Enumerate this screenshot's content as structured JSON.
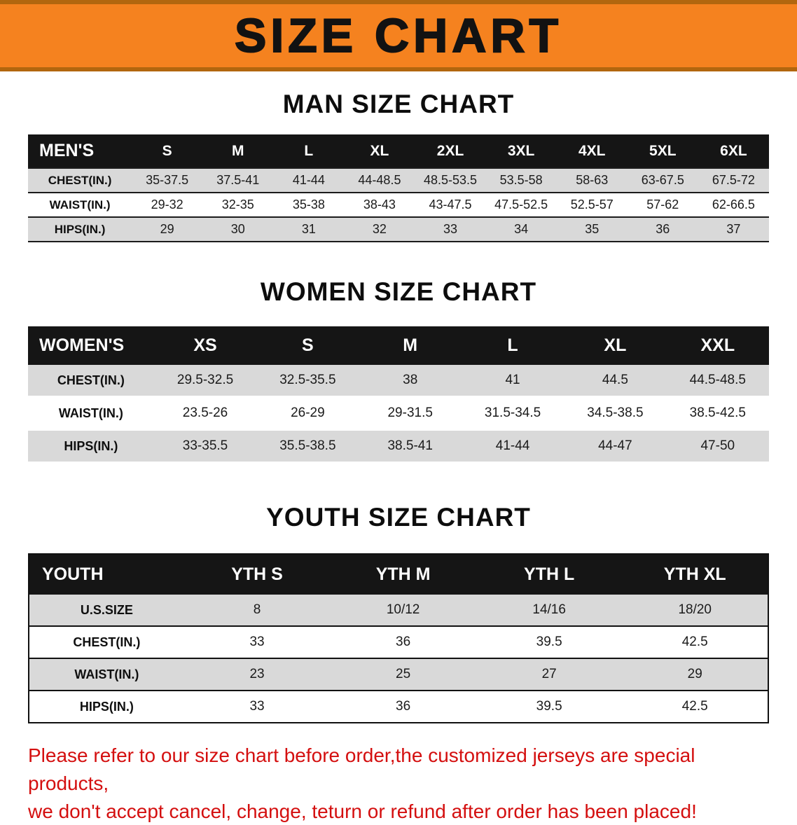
{
  "banner": {
    "title": "SIZE CHART"
  },
  "colors": {
    "banner-bg": "#F5821F",
    "banner-edge": "#B2660E",
    "header-black": "#151515",
    "stripe-gray": "#D9D9D9",
    "footer-red": "#D40F0F"
  },
  "sections": [
    {
      "title": "MAN SIZE CHART",
      "table": {
        "header": [
          "MEN'S",
          "S",
          "M",
          "L",
          "XL",
          "2XL",
          "3XL",
          "4XL",
          "5XL",
          "6XL"
        ],
        "rows": [
          [
            "CHEST(IN.)",
            "35-37.5",
            "37.5-41",
            "41-44",
            "44-48.5",
            "48.5-53.5",
            "53.5-58",
            "58-63",
            "63-67.5",
            "67.5-72"
          ],
          [
            "WAIST(IN.)",
            "29-32",
            "32-35",
            "35-38",
            "38-43",
            "43-47.5",
            "47.5-52.5",
            "52.5-57",
            "57-62",
            "62-66.5"
          ],
          [
            "HIPS(IN.)",
            "29",
            "30",
            "31",
            "32",
            "33",
            "34",
            "35",
            "36",
            "37"
          ]
        ]
      }
    },
    {
      "title": "WOMEN SIZE CHART",
      "table": {
        "header": [
          "WOMEN'S",
          "XS",
          "S",
          "M",
          "L",
          "XL",
          "XXL"
        ],
        "rows": [
          [
            "CHEST(IN.)",
            "29.5-32.5",
            "32.5-35.5",
            "38",
            "41",
            "44.5",
            "44.5-48.5"
          ],
          [
            "WAIST(IN.)",
            "23.5-26",
            "26-29",
            "29-31.5",
            "31.5-34.5",
            "34.5-38.5",
            "38.5-42.5"
          ],
          [
            "HIPS(IN.)",
            "33-35.5",
            "35.5-38.5",
            "38.5-41",
            "41-44",
            "44-47",
            "47-50"
          ]
        ]
      }
    },
    {
      "title": "YOUTH SIZE CHART",
      "table": {
        "header": [
          "YOUTH",
          "YTH S",
          "YTH M",
          "YTH L",
          "YTH XL"
        ],
        "rows": [
          [
            "U.S.SIZE",
            "8",
            "10/12",
            "14/16",
            "18/20"
          ],
          [
            "CHEST(IN.)",
            "33",
            "36",
            "39.5",
            "42.5"
          ],
          [
            "WAIST(IN.)",
            "23",
            "25",
            "27",
            "29"
          ],
          [
            "HIPS(IN.)",
            "33",
            "36",
            "39.5",
            "42.5"
          ]
        ]
      }
    }
  ],
  "footer": {
    "line1": "Please refer to our size chart before order,the customized jerseys are special products,",
    "line2": "we don't accept cancel, change, teturn or refund after order has been placed!"
  }
}
